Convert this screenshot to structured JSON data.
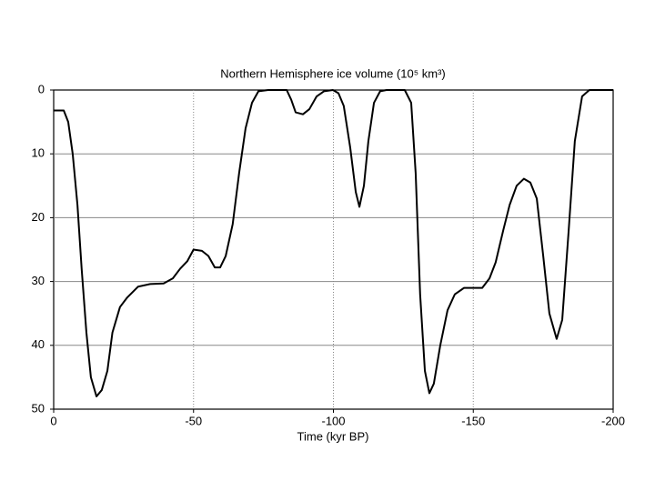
{
  "chart_data": {
    "type": "line",
    "title": "Northern Hemisphere ice volume (10⁵ km³)",
    "x_label": "Time (kyr BP)",
    "color": "#000000",
    "grid": true,
    "xlim": [
      0,
      -200
    ],
    "xticks": [
      0,
      -50,
      -100,
      -150,
      -200
    ],
    "ylim": [
      50,
      0
    ],
    "yticks": [
      0,
      10,
      20,
      30,
      40,
      50
    ],
    "x": [
      0,
      -3.6,
      -5.2,
      -6.8,
      -8.5,
      -10,
      -11.7,
      -13.3,
      -15.3,
      -17.2,
      -19.2,
      -21,
      -23.7,
      -26.3,
      -30.2,
      -34.5,
      -39.3,
      -42.6,
      -45.2,
      -47.8,
      -50,
      -53,
      -55.3,
      -57.6,
      -59.5,
      -61.5,
      -64,
      -66.3,
      -68.6,
      -70.9,
      -73.2,
      -76.7,
      -83.3,
      -84.9,
      -86.5,
      -89.1,
      -91.4,
      -94,
      -96.6,
      -99.8,
      -101.8,
      -103.7,
      -106,
      -108,
      -109.3,
      -110.9,
      -112.5,
      -114.5,
      -116.7,
      -119,
      -125.5,
      -127.8,
      -129.4,
      -131,
      -132.7,
      -134.3,
      -135.9,
      -138.2,
      -140.8,
      -143.4,
      -146.7,
      -153.2,
      -155.8,
      -158,
      -160.7,
      -163,
      -165.5,
      -168.1,
      -170.4,
      -172.7,
      -175,
      -177.2,
      -179.8,
      -181.8,
      -184.1,
      -186.3,
      -188.9,
      -191.5,
      -200
    ],
    "values": [
      3.2,
      3.2,
      5,
      10,
      18,
      28,
      38,
      45,
      48,
      47,
      44,
      38,
      34,
      32.5,
      30.8,
      30.4,
      30.3,
      29.5,
      28,
      26.8,
      25,
      25.2,
      26,
      27.8,
      27.8,
      26,
      21,
      13,
      6,
      2,
      0.2,
      0,
      0,
      1.5,
      3.5,
      3.8,
      3,
      1,
      0.2,
      0,
      0.5,
      2.5,
      9,
      16,
      18.3,
      15,
      8,
      2,
      0.2,
      0,
      0,
      2,
      13,
      32,
      44,
      47.5,
      46,
      40,
      34.5,
      32,
      31,
      31,
      29.5,
      27,
      22,
      18,
      15,
      13.9,
      14.5,
      17,
      26,
      35,
      39,
      36,
      22,
      8,
      1,
      0,
      0
    ]
  }
}
